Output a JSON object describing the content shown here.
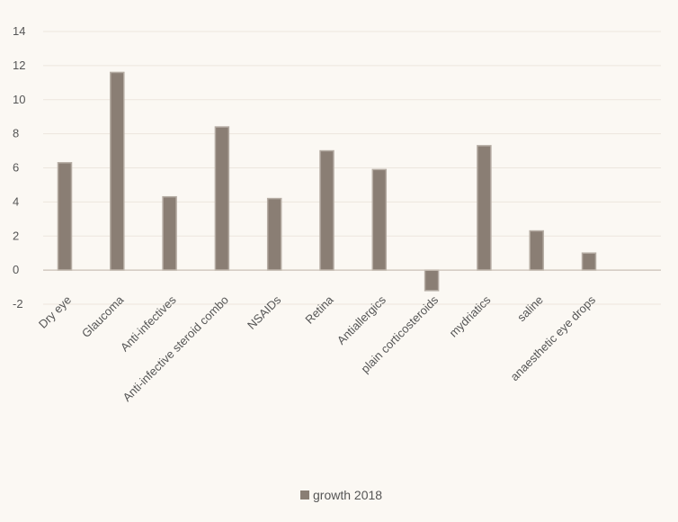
{
  "chart_data": {
    "type": "bar",
    "title": "",
    "xlabel": "",
    "ylabel": "",
    "categories": [
      "Dry eye",
      "Glaucoma",
      "Anti-infectives",
      "Anti-infective steroid combo",
      "NSAIDs",
      "Retina",
      "Antiallergics",
      "plain corticosteroids",
      "mydriatics",
      "saline",
      "anaesthetic eye drops"
    ],
    "series": [
      {
        "name": "growth 2018",
        "values": [
          6.3,
          11.6,
          4.3,
          8.4,
          4.2,
          7.0,
          5.9,
          -1.2,
          7.3,
          2.3,
          1.0
        ]
      }
    ],
    "ylim": [
      -2,
      14
    ],
    "yticks": [
      -2,
      0,
      2,
      4,
      6,
      8,
      10,
      12,
      14
    ],
    "grid": true,
    "legend_position": "bottom",
    "colors": {
      "bar": "#8a7e74",
      "bar_edge": "#b5aca3",
      "gridline": "#ece6de",
      "axis": "#c9c0b6",
      "background": "#fbf8f3"
    }
  }
}
